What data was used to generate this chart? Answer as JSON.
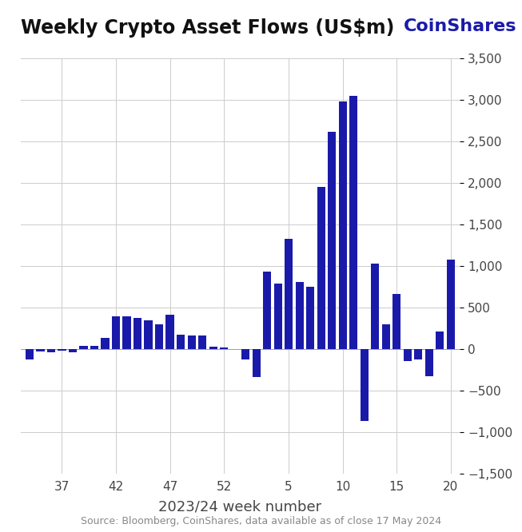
{
  "title": "Weekly Crypto Asset Flows (US$m)",
  "brand": "CoinShares",
  "xlabel": "2023/24 week number",
  "source": "Source: Bloomberg, CoinShares, data available as of close 17 May 2024",
  "ylim": [
    -1500,
    3500
  ],
  "yticks": [
    -1500,
    -1000,
    -500,
    0,
    500,
    1000,
    1500,
    2000,
    2500,
    3000,
    3500
  ],
  "xticks": [
    37,
    42,
    47,
    52,
    5,
    10,
    15,
    20
  ],
  "bar_color": "#1a1aaa",
  "weeks": [
    34,
    35,
    36,
    37,
    38,
    39,
    40,
    41,
    42,
    43,
    44,
    45,
    46,
    47,
    48,
    49,
    50,
    51,
    52,
    1,
    2,
    3,
    4,
    5,
    6,
    7,
    8,
    9,
    10,
    11,
    12,
    13,
    14,
    15,
    16,
    17,
    18,
    19,
    20
  ],
  "values": [
    -130,
    -30,
    -40,
    -20,
    -40,
    40,
    40,
    130,
    390,
    390,
    370,
    350,
    300,
    410,
    170,
    160,
    160,
    30,
    20,
    -130,
    -340,
    930,
    790,
    1330,
    810,
    750,
    1950,
    2620,
    2980,
    3050,
    -870,
    1030,
    300,
    660,
    -150,
    -130,
    -330,
    210,
    1080
  ],
  "background_color": "#ffffff",
  "grid_color": "#cccccc",
  "title_fontsize": 17,
  "brand_fontsize": 16,
  "tick_fontsize": 11,
  "label_fontsize": 13,
  "source_fontsize": 9
}
